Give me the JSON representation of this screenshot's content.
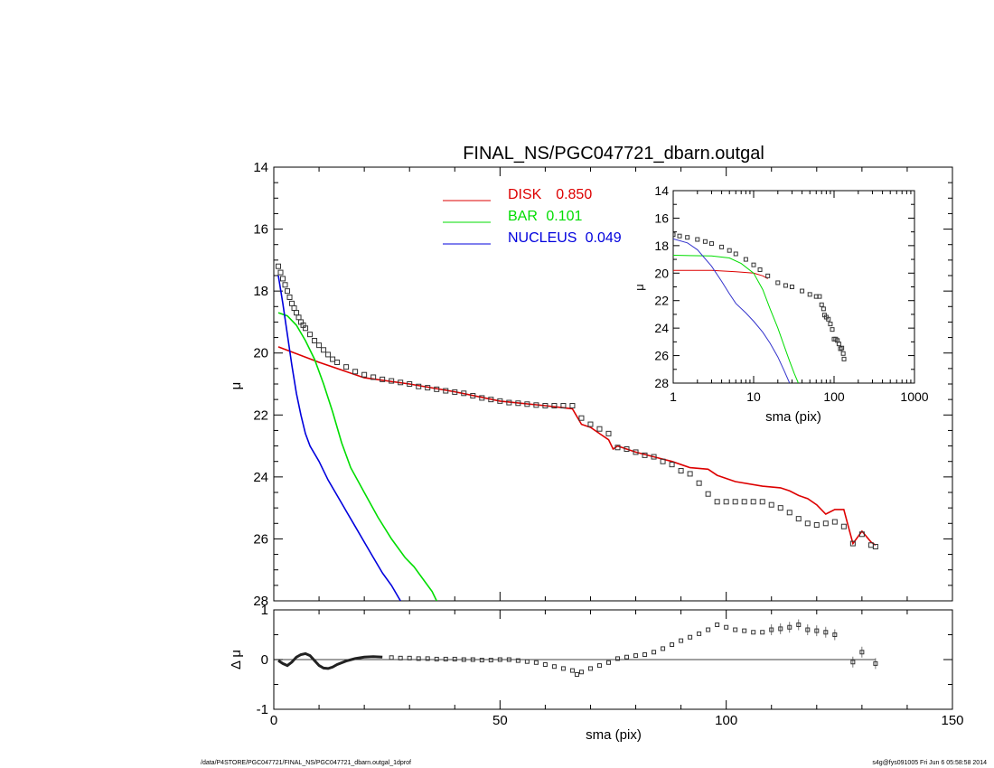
{
  "chart_data": [
    {
      "type": "line",
      "title": "FINAL_NS/PGC047721_dbarn.outgal",
      "xlabel": "",
      "ylabel": "μ",
      "xlim": [
        0,
        150
      ],
      "ylim": [
        28,
        14
      ],
      "y_inverted": true,
      "grid": false,
      "legend_position": "top-center",
      "y_ticks": [
        "14",
        "16",
        "18",
        "20",
        "22",
        "24",
        "26",
        "28"
      ],
      "series": [
        {
          "name": "DISK",
          "label_value": "0.850",
          "color": "#dd0000",
          "x": [
            1,
            10,
            20,
            30,
            40,
            50,
            60,
            66,
            68,
            70,
            72,
            74,
            75,
            76,
            80,
            84,
            88,
            92,
            96,
            98,
            102,
            108,
            112,
            114,
            116,
            118,
            120,
            122,
            124,
            126,
            127,
            128,
            130,
            132,
            133
          ],
          "y": [
            19.8,
            20.3,
            20.8,
            21.0,
            21.25,
            21.55,
            21.7,
            21.8,
            22.3,
            22.4,
            22.6,
            22.8,
            23.1,
            23.0,
            23.2,
            23.35,
            23.5,
            23.7,
            23.75,
            23.95,
            24.15,
            24.3,
            24.35,
            24.45,
            24.6,
            24.7,
            24.9,
            25.2,
            25.05,
            25.05,
            25.6,
            26.15,
            25.75,
            26.1,
            26.2
          ]
        },
        {
          "name": "BAR",
          "label_value": "0.101",
          "color": "#00dd00",
          "x": [
            1,
            3,
            5,
            7,
            9,
            11,
            13,
            15,
            17,
            20,
            23,
            26,
            29,
            31,
            33,
            35,
            36
          ],
          "y": [
            18.7,
            18.8,
            19.1,
            19.6,
            20.2,
            21.0,
            21.9,
            22.9,
            23.7,
            24.5,
            25.3,
            26.0,
            26.6,
            26.9,
            27.3,
            27.7,
            28.0
          ]
        },
        {
          "name": "NUCLEUS",
          "label_value": "0.049",
          "color": "#0000dd",
          "x": [
            1,
            2,
            3,
            4,
            5,
            6,
            7,
            8,
            10,
            12,
            14,
            16,
            18,
            20,
            22,
            24,
            26,
            28
          ],
          "y": [
            17.5,
            18.4,
            19.4,
            20.4,
            21.3,
            22.0,
            22.6,
            23.0,
            23.5,
            24.1,
            24.6,
            25.1,
            25.6,
            26.1,
            26.6,
            27.1,
            27.5,
            28.0
          ]
        },
        {
          "name": "",
          "style": "open-squares",
          "color": "#333333",
          "x": [
            1,
            1.5,
            2,
            2.5,
            3,
            3.5,
            4,
            4.5,
            5,
            5.5,
            6,
            6.5,
            7,
            8,
            9,
            10,
            11,
            12,
            13,
            14,
            16,
            18,
            20,
            22,
            24,
            26,
            28,
            30,
            32,
            34,
            36,
            38,
            40,
            42,
            44,
            46,
            48,
            50,
            52,
            54,
            56,
            58,
            60,
            62,
            64,
            66,
            68,
            70,
            72,
            74,
            76,
            78,
            80,
            82,
            84,
            86,
            88,
            90,
            92,
            94,
            96,
            98,
            100,
            102,
            104,
            106,
            108,
            110,
            112,
            114,
            116,
            118,
            120,
            122,
            124,
            126,
            128,
            130,
            132,
            133
          ],
          "y": [
            17.2,
            17.4,
            17.6,
            17.8,
            18.0,
            18.2,
            18.4,
            18.55,
            18.7,
            18.85,
            19.0,
            19.1,
            19.2,
            19.4,
            19.6,
            19.75,
            19.9,
            20.05,
            20.2,
            20.3,
            20.45,
            20.6,
            20.7,
            20.78,
            20.85,
            20.9,
            20.95,
            21.0,
            21.08,
            21.12,
            21.17,
            21.22,
            21.26,
            21.3,
            21.38,
            21.45,
            21.5,
            21.55,
            21.6,
            21.62,
            21.65,
            21.68,
            21.7,
            21.7,
            21.7,
            21.7,
            22.1,
            22.3,
            22.45,
            22.6,
            23.05,
            23.1,
            23.2,
            23.3,
            23.35,
            23.5,
            23.6,
            23.8,
            23.9,
            24.2,
            24.55,
            24.8,
            24.8,
            24.8,
            24.8,
            24.8,
            24.8,
            24.9,
            25.0,
            25.15,
            25.35,
            25.5,
            25.55,
            25.5,
            25.45,
            25.6,
            26.15,
            25.85,
            26.2,
            26.25
          ]
        }
      ]
    },
    {
      "type": "scatter",
      "title": "",
      "xlabel": "sma (pix)",
      "ylabel": "Δ μ",
      "xlim": [
        0,
        150
      ],
      "ylim": [
        -1,
        1
      ],
      "grid": false,
      "x_ticks": [
        "0",
        "50",
        "100",
        "150"
      ],
      "y_ticks": [
        "-1",
        "0",
        "1"
      ],
      "reference_line": 0,
      "oscillation": {
        "color": "#222222",
        "x": [
          1,
          2,
          3,
          4,
          5,
          6,
          7,
          8,
          9,
          10,
          11,
          12,
          13,
          14,
          16,
          18,
          20,
          22,
          24
        ],
        "y": [
          -0.02,
          -0.08,
          -0.12,
          -0.05,
          0.05,
          0.1,
          0.12,
          0.08,
          -0.02,
          -0.12,
          -0.17,
          -0.18,
          -0.15,
          -0.1,
          -0.03,
          0.02,
          0.05,
          0.06,
          0.05
        ]
      },
      "residuals": {
        "color": "#333333",
        "x": [
          26,
          28,
          30,
          32,
          34,
          36,
          38,
          40,
          42,
          44,
          46,
          48,
          50,
          52,
          54,
          56,
          58,
          60,
          62,
          64,
          66,
          67,
          68,
          70,
          72,
          74,
          76,
          78,
          80,
          82,
          84,
          86,
          88,
          90,
          92,
          94,
          96,
          98,
          100,
          102,
          104,
          106,
          108,
          110,
          112,
          114,
          116,
          118,
          120,
          122,
          124,
          128,
          130,
          133
        ],
        "y": [
          0.04,
          0.03,
          0.03,
          0.02,
          0.02,
          0.01,
          0.01,
          0.01,
          0.0,
          0.0,
          -0.01,
          -0.01,
          0.0,
          0.0,
          -0.02,
          -0.04,
          -0.06,
          -0.1,
          -0.14,
          -0.18,
          -0.22,
          -0.3,
          -0.25,
          -0.18,
          -0.12,
          -0.06,
          0.02,
          0.05,
          0.08,
          0.1,
          0.15,
          0.22,
          0.3,
          0.38,
          0.45,
          0.52,
          0.6,
          0.7,
          0.65,
          0.6,
          0.58,
          0.55,
          0.55,
          0.6,
          0.62,
          0.65,
          0.7,
          0.6,
          0.58,
          0.55,
          0.5,
          -0.05,
          0.15,
          -0.08
        ]
      }
    },
    {
      "type": "line",
      "title": "",
      "xlabel": "sma (pix)",
      "ylabel": "μ",
      "x_scale": "log",
      "xlim": [
        1,
        1000
      ],
      "ylim": [
        28,
        14
      ],
      "y_inverted": true,
      "grid": false,
      "x_ticks": [
        "1",
        "10",
        "100",
        "1000"
      ],
      "y_ticks": [
        "14",
        "16",
        "18",
        "20",
        "22",
        "24",
        "26",
        "28"
      ],
      "series": [
        {
          "name": "",
          "color": "#dd0000",
          "x": [
            1,
            3,
            6,
            10,
            13,
            15
          ],
          "y": [
            19.8,
            19.8,
            19.9,
            20.0,
            20.2,
            20.4
          ]
        },
        {
          "name": "",
          "color": "#00dd00",
          "x": [
            1,
            3,
            5,
            7,
            10,
            13,
            16,
            20,
            24,
            28,
            32,
            36
          ],
          "y": [
            18.7,
            18.75,
            18.9,
            19.3,
            20.0,
            21.2,
            22.6,
            24.0,
            25.3,
            26.4,
            27.3,
            28.0
          ]
        },
        {
          "name": "",
          "color": "#3333cc",
          "x": [
            1,
            1.5,
            2,
            3,
            4,
            5,
            6,
            8,
            10,
            13,
            16,
            20,
            24,
            28
          ],
          "y": [
            17.5,
            17.8,
            18.3,
            19.5,
            20.6,
            21.5,
            22.2,
            22.9,
            23.5,
            24.3,
            25.1,
            26.1,
            27.1,
            28.0
          ]
        },
        {
          "name": "",
          "style": "open-squares",
          "color": "#333333",
          "x": [
            1,
            1.2,
            1.5,
            2,
            2.5,
            3,
            4,
            5,
            6,
            8,
            10,
            12,
            15,
            20,
            25,
            30,
            40,
            50,
            60,
            66,
            70,
            74,
            76,
            80,
            85,
            90,
            95,
            100,
            105,
            110,
            115,
            120,
            125,
            130,
            133
          ],
          "y": [
            17.2,
            17.3,
            17.4,
            17.55,
            17.7,
            17.85,
            18.1,
            18.35,
            18.6,
            19.0,
            19.4,
            19.75,
            20.2,
            20.7,
            20.9,
            21.0,
            21.3,
            21.55,
            21.7,
            21.7,
            22.3,
            22.6,
            23.05,
            23.2,
            23.35,
            23.7,
            24.1,
            24.8,
            24.8,
            24.9,
            25.15,
            25.5,
            25.45,
            25.85,
            26.25
          ]
        }
      ]
    }
  ],
  "footer": {
    "left": "/data/P4STORE/PGC047721/FINAL_NS/PGC047721_dbarn.outgal_1dprof",
    "right": "s4g@fys091005  Fri Jun  6 05:58:58 2014"
  },
  "colors": {
    "axes": "#000000",
    "disk": "#dd0000",
    "bar": "#00dd00",
    "nucleus": "#0000dd",
    "data": "#333333"
  }
}
